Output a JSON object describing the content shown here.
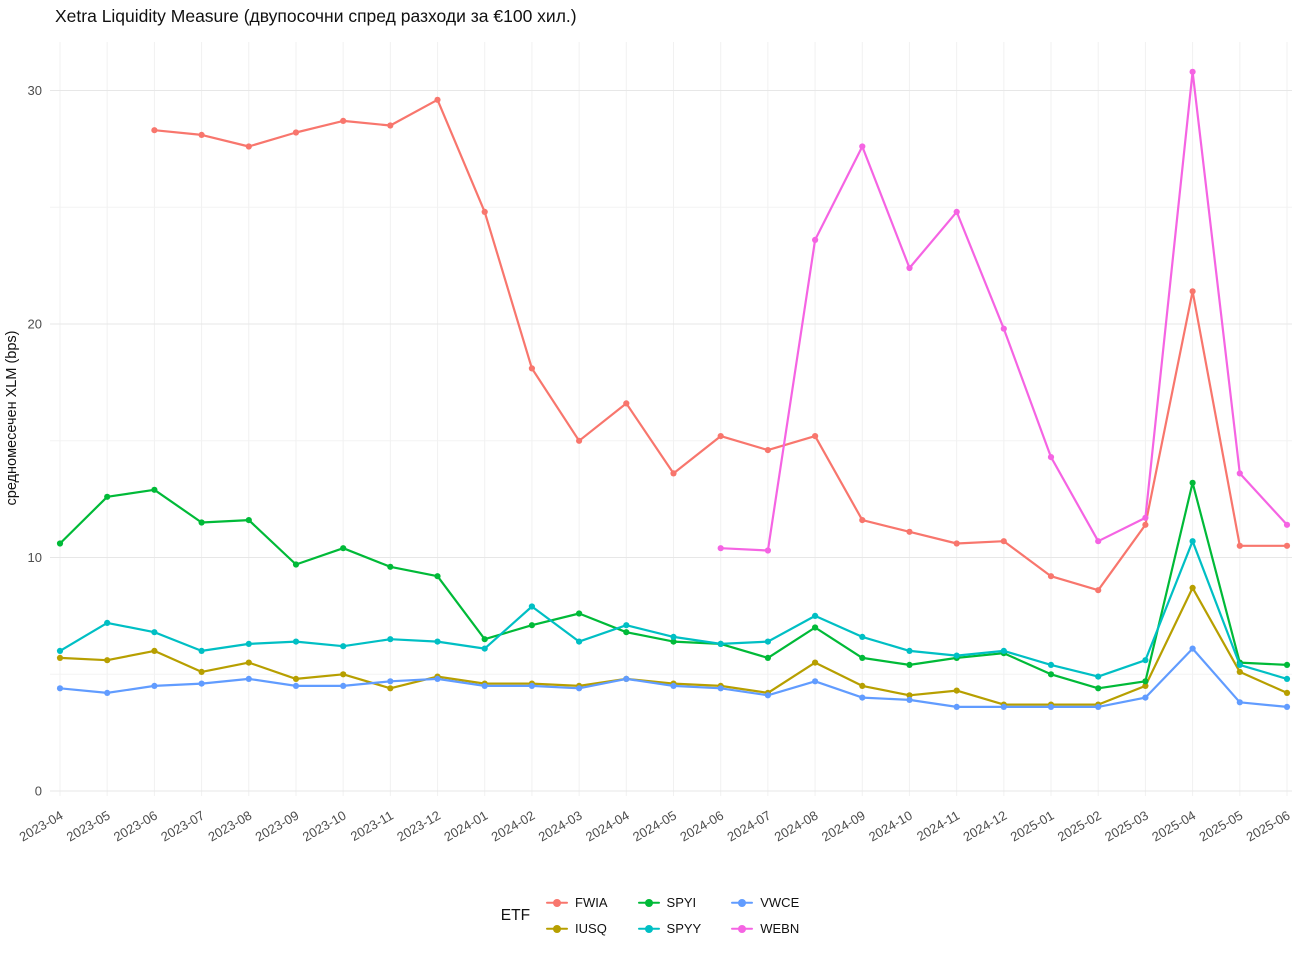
{
  "chart_data": {
    "type": "line",
    "title": "Xetra Liquidity Measure (двупосочни спред разходи за €100 хил.)",
    "ylabel": "средномесечен XLM (bps)",
    "xlabel": "",
    "legend_title": "ETF",
    "legend_position": "bottom",
    "grid": true,
    "ylim": [
      0,
      31
    ],
    "yticks": [
      0,
      10,
      20,
      30
    ],
    "yticks_minor": [
      5,
      15,
      25
    ],
    "categories": [
      "2023-04",
      "2023-05",
      "2023-06",
      "2023-07",
      "2023-08",
      "2023-09",
      "2023-10",
      "2023-11",
      "2023-12",
      "2024-01",
      "2024-02",
      "2024-03",
      "2024-04",
      "2024-05",
      "2024-06",
      "2024-07",
      "2024-08",
      "2024-09",
      "2024-10",
      "2024-11",
      "2024-12",
      "2025-01",
      "2025-02",
      "2025-03",
      "2025-04",
      "2025-05",
      "2025-06"
    ],
    "series": [
      {
        "name": "FWIA",
        "color": "#F8766D",
        "values": [
          null,
          null,
          28.3,
          28.1,
          27.6,
          28.2,
          28.7,
          28.5,
          29.6,
          24.8,
          18.1,
          15.0,
          16.6,
          13.6,
          15.2,
          14.6,
          15.2,
          11.6,
          11.1,
          10.6,
          10.7,
          9.2,
          8.6,
          11.4,
          21.4,
          10.5,
          10.5
        ]
      },
      {
        "name": "IUSQ",
        "color": "#B79F00",
        "values": [
          5.7,
          5.6,
          6.0,
          5.1,
          5.5,
          4.8,
          5.0,
          4.4,
          4.9,
          4.6,
          4.6,
          4.5,
          4.8,
          4.6,
          4.5,
          4.2,
          5.5,
          4.5,
          4.1,
          4.3,
          3.7,
          3.7,
          3.7,
          4.5,
          8.7,
          5.1,
          4.2
        ]
      },
      {
        "name": "SPYI",
        "color": "#00BA38",
        "values": [
          10.6,
          12.6,
          12.9,
          11.5,
          11.6,
          9.7,
          10.4,
          9.6,
          9.2,
          6.5,
          7.1,
          7.6,
          6.8,
          6.4,
          6.3,
          5.7,
          7.0,
          5.7,
          5.4,
          5.7,
          5.9,
          5.0,
          4.4,
          4.7,
          13.2,
          5.5,
          5.4
        ]
      },
      {
        "name": "SPYY",
        "color": "#00BFC4",
        "values": [
          6.0,
          7.2,
          6.8,
          6.0,
          6.3,
          6.4,
          6.2,
          6.5,
          6.4,
          6.1,
          7.9,
          6.4,
          7.1,
          6.6,
          6.3,
          6.4,
          7.5,
          6.6,
          6.0,
          5.8,
          6.0,
          5.4,
          4.9,
          5.6,
          10.7,
          5.4,
          4.8
        ]
      },
      {
        "name": "VWCE",
        "color": "#619CFF",
        "values": [
          4.4,
          4.2,
          4.5,
          4.6,
          4.8,
          4.5,
          4.5,
          4.7,
          4.8,
          4.5,
          4.5,
          4.4,
          4.8,
          4.5,
          4.4,
          4.1,
          4.7,
          4.0,
          3.9,
          3.6,
          3.6,
          3.6,
          3.6,
          4.0,
          6.1,
          3.8,
          3.6
        ]
      },
      {
        "name": "WEBN",
        "color": "#F564E3",
        "values": [
          null,
          null,
          null,
          null,
          null,
          null,
          null,
          null,
          null,
          null,
          null,
          null,
          null,
          null,
          10.4,
          10.3,
          23.6,
          27.6,
          22.4,
          24.8,
          19.8,
          14.3,
          10.7,
          11.7,
          30.8,
          13.6,
          11.4
        ]
      }
    ],
    "legend_rows": [
      [
        "FWIA",
        "SPYI",
        "VWCE"
      ],
      [
        "IUSQ",
        "SPYY",
        "WEBN"
      ]
    ]
  }
}
